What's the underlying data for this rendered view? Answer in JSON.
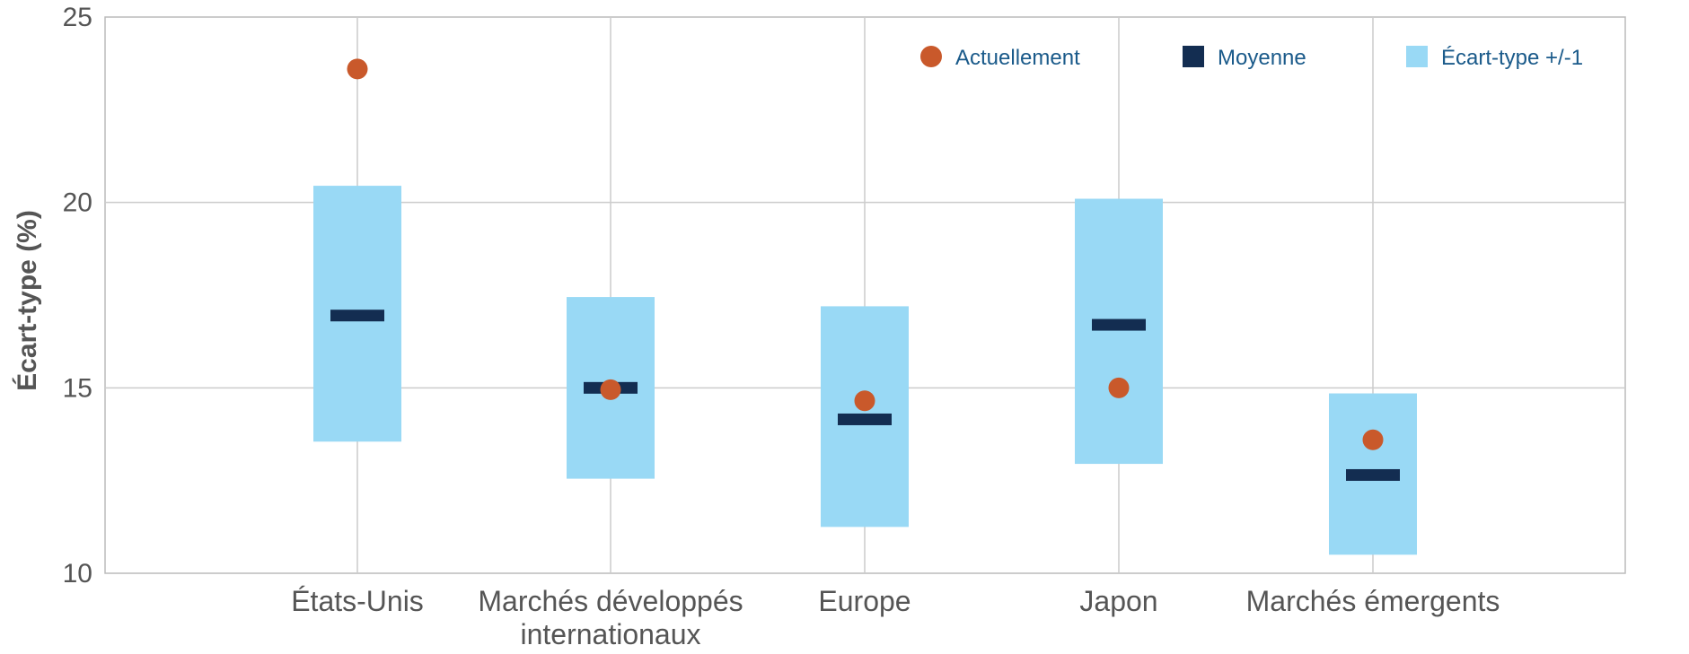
{
  "chart_data": {
    "type": "box-range",
    "ylabel": "Écart-type (%)",
    "ylim": [
      10,
      25
    ],
    "yticks": [
      10,
      15,
      20,
      25
    ],
    "grid": true,
    "legend_position": "top-right",
    "categories": [
      {
        "lines": [
          "États-Unis"
        ]
      },
      {
        "lines": [
          "Marchés développés",
          "internationaux"
        ]
      },
      {
        "lines": [
          "Europe"
        ]
      },
      {
        "lines": [
          "Japon"
        ]
      },
      {
        "lines": [
          "Marchés émergents"
        ]
      }
    ],
    "series": [
      {
        "name": "Actuellement",
        "marker": "circle",
        "color": "#c9592b",
        "values": [
          23.6,
          14.95,
          14.65,
          15.0,
          13.6
        ]
      },
      {
        "name": "Moyenne",
        "marker": "bar",
        "color": "#132d51",
        "values": [
          16.95,
          15.0,
          14.15,
          16.7,
          12.65
        ]
      },
      {
        "name": "Écart-type +/-1",
        "marker": "range",
        "color": "#99d9f5",
        "low": [
          13.55,
          12.55,
          11.25,
          12.95,
          10.5
        ],
        "high": [
          20.45,
          17.45,
          17.2,
          20.1,
          14.85
        ]
      }
    ]
  }
}
